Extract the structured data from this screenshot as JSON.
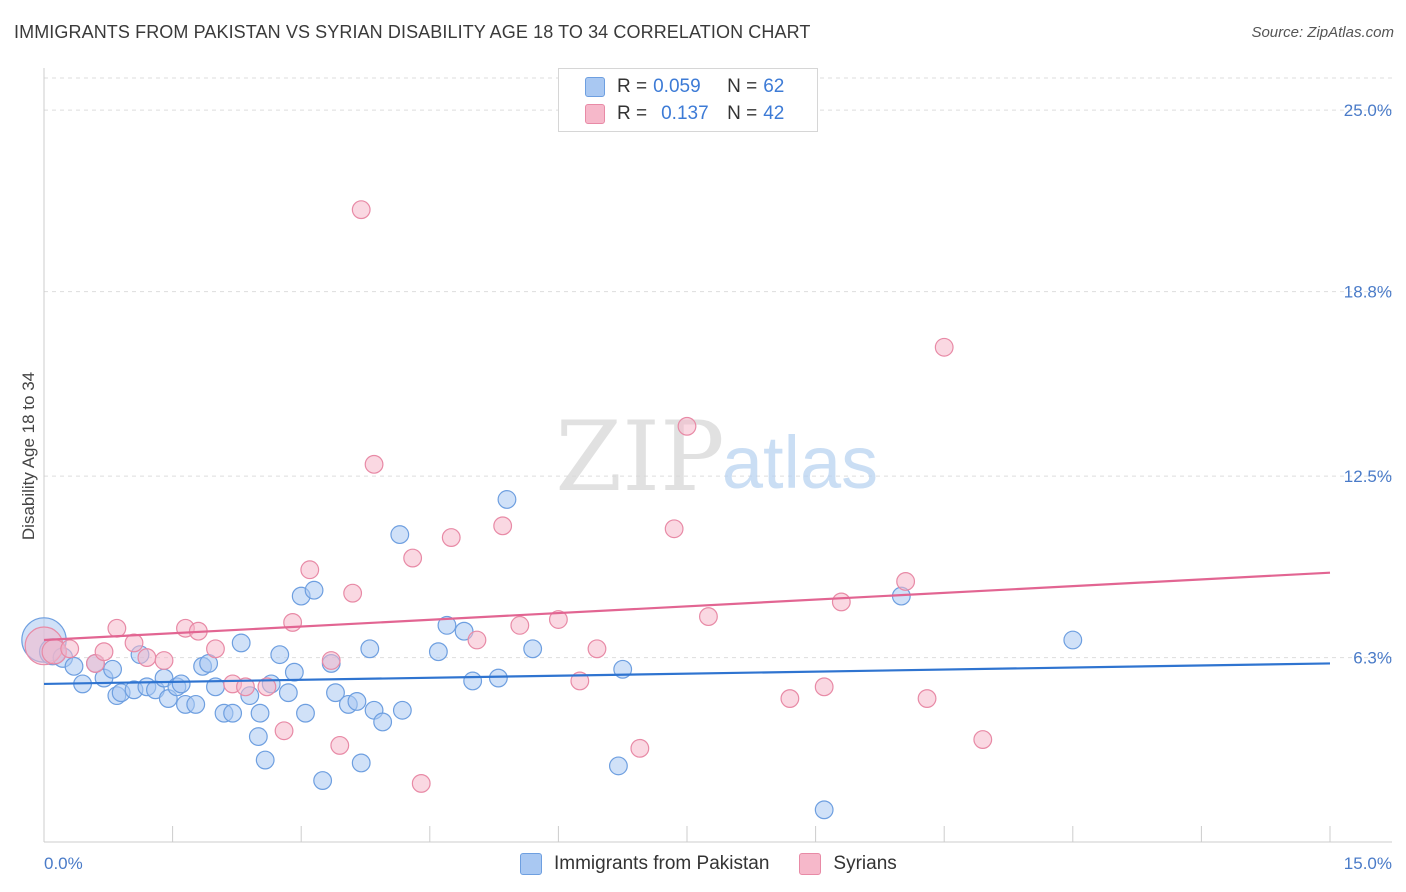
{
  "header": {
    "title": "IMMIGRANTS FROM PAKISTAN VS SYRIAN DISABILITY AGE 18 TO 34 CORRELATION CHART",
    "source": "Source: ZipAtlas.com"
  },
  "watermark": {
    "zip": "ZIP",
    "atlas": "atlas"
  },
  "legend": {
    "rows": [
      {
        "r_label": "R =",
        "r_value": "0.059",
        "n_label": "N =",
        "n_value": "62",
        "color": "#a9c8f2"
      },
      {
        "r_label": "R =",
        "r_value": "0.137",
        "n_label": "N =",
        "n_value": "42",
        "color": "#f6b8ca"
      }
    ]
  },
  "bottom_legend": [
    {
      "label": "Immigrants from Pakistan",
      "color": "#a9c8f2"
    },
    {
      "label": "Syrians",
      "color": "#f6b8ca"
    }
  ],
  "colors": {
    "blue_fill": "#a9c8f2",
    "blue_stroke": "#6e9fe0",
    "blue_line": "#2f74d0",
    "pink_fill": "#f6b8ca",
    "pink_stroke": "#e88aa6",
    "pink_line": "#e26592",
    "grid": "#dddddd",
    "tick": "#4a7bc8"
  },
  "chart_data": {
    "type": "scatter",
    "title": "IMMIGRANTS FROM PAKISTAN VS SYRIAN DISABILITY AGE 18 TO 34 CORRELATION CHART",
    "xlabel": "",
    "ylabel": "Disability Age 18 to 34",
    "xlim": [
      0,
      15
    ],
    "ylim": [
      0,
      26.2
    ],
    "x_tick_labels": [
      "0.0%",
      "15.0%"
    ],
    "y_ticks": [
      6.3,
      12.5,
      18.8,
      25.0
    ],
    "y_tick_labels": [
      "6.3%",
      "12.5%",
      "18.8%",
      "25.0%"
    ],
    "legend_position": "top-center",
    "series": [
      {
        "name": "Immigrants from Pakistan",
        "trend": [
          [
            0,
            5.4
          ],
          [
            15,
            6.1
          ]
        ],
        "points": [
          [
            0.0,
            6.9,
            26
          ],
          [
            0.1,
            6.5,
            15
          ],
          [
            0.22,
            6.3,
            11
          ],
          [
            0.35,
            6.0,
            10
          ],
          [
            0.45,
            5.4,
            10
          ],
          [
            0.6,
            6.1,
            10
          ],
          [
            0.7,
            5.6,
            10
          ],
          [
            0.8,
            5.9,
            10
          ],
          [
            0.85,
            5.0,
            10
          ],
          [
            0.9,
            5.1,
            10
          ],
          [
            1.05,
            5.2,
            10
          ],
          [
            1.12,
            6.4,
            10
          ],
          [
            1.2,
            5.3,
            10
          ],
          [
            1.3,
            5.2,
            10
          ],
          [
            1.4,
            5.6,
            10
          ],
          [
            1.45,
            4.9,
            10
          ],
          [
            1.55,
            5.3,
            10
          ],
          [
            1.6,
            5.4,
            10
          ],
          [
            1.65,
            4.7,
            10
          ],
          [
            1.77,
            4.7,
            10
          ],
          [
            1.85,
            6.0,
            10
          ],
          [
            1.92,
            6.1,
            10
          ],
          [
            2.0,
            5.3,
            10
          ],
          [
            2.1,
            4.4,
            10
          ],
          [
            2.2,
            4.4,
            10
          ],
          [
            2.3,
            6.8,
            10
          ],
          [
            2.4,
            5.0,
            10
          ],
          [
            2.5,
            3.6,
            10
          ],
          [
            2.52,
            4.4,
            10
          ],
          [
            2.58,
            2.8,
            10
          ],
          [
            2.65,
            5.4,
            10
          ],
          [
            2.75,
            6.4,
            10
          ],
          [
            2.85,
            5.1,
            10
          ],
          [
            2.92,
            5.8,
            10
          ],
          [
            3.0,
            8.4,
            10
          ],
          [
            3.05,
            4.4,
            10
          ],
          [
            3.15,
            8.6,
            10
          ],
          [
            3.25,
            2.1,
            10
          ],
          [
            3.35,
            6.1,
            10
          ],
          [
            3.4,
            5.1,
            10
          ],
          [
            3.55,
            4.7,
            10
          ],
          [
            3.65,
            4.8,
            10
          ],
          [
            3.7,
            2.7,
            10
          ],
          [
            3.8,
            6.6,
            10
          ],
          [
            3.85,
            4.5,
            10
          ],
          [
            3.95,
            4.1,
            10
          ],
          [
            4.15,
            10.5,
            10
          ],
          [
            4.18,
            4.5,
            10
          ],
          [
            4.6,
            6.5,
            10
          ],
          [
            4.7,
            7.4,
            10
          ],
          [
            4.9,
            7.2,
            10
          ],
          [
            5.0,
            5.5,
            10
          ],
          [
            5.3,
            5.6,
            10
          ],
          [
            5.4,
            11.7,
            10
          ],
          [
            5.7,
            6.6,
            10
          ],
          [
            6.7,
            2.6,
            10
          ],
          [
            6.75,
            5.9,
            10
          ],
          [
            9.1,
            1.1,
            10
          ],
          [
            10.0,
            8.4,
            10
          ],
          [
            12.0,
            6.9,
            10
          ]
        ]
      },
      {
        "name": "Syrians",
        "trend": [
          [
            0,
            6.9
          ],
          [
            15,
            9.2
          ]
        ],
        "points": [
          [
            0.0,
            6.7,
            22
          ],
          [
            0.12,
            6.5,
            14
          ],
          [
            0.3,
            6.6,
            10
          ],
          [
            0.6,
            6.1,
            10
          ],
          [
            0.7,
            6.5,
            10
          ],
          [
            0.85,
            7.3,
            10
          ],
          [
            1.05,
            6.8,
            10
          ],
          [
            1.2,
            6.3,
            10
          ],
          [
            1.4,
            6.2,
            10
          ],
          [
            1.65,
            7.3,
            10
          ],
          [
            1.8,
            7.2,
            10
          ],
          [
            2.0,
            6.6,
            10
          ],
          [
            2.2,
            5.4,
            10
          ],
          [
            2.35,
            5.3,
            10
          ],
          [
            2.6,
            5.3,
            10
          ],
          [
            2.8,
            3.8,
            10
          ],
          [
            2.9,
            7.5,
            10
          ],
          [
            3.1,
            9.3,
            10
          ],
          [
            3.35,
            6.2,
            10
          ],
          [
            3.45,
            3.3,
            10
          ],
          [
            3.6,
            8.5,
            10
          ],
          [
            3.7,
            21.6,
            10
          ],
          [
            3.85,
            12.9,
            10
          ],
          [
            4.3,
            9.7,
            10
          ],
          [
            4.4,
            2.0,
            10
          ],
          [
            4.75,
            10.4,
            10
          ],
          [
            5.05,
            6.9,
            10
          ],
          [
            5.35,
            10.8,
            10
          ],
          [
            5.55,
            7.4,
            10
          ],
          [
            6.0,
            7.6,
            10
          ],
          [
            6.25,
            5.5,
            10
          ],
          [
            6.45,
            6.6,
            10
          ],
          [
            6.95,
            3.2,
            10
          ],
          [
            7.35,
            10.7,
            10
          ],
          [
            7.5,
            14.2,
            10
          ],
          [
            7.75,
            7.7,
            10
          ],
          [
            8.7,
            4.9,
            10
          ],
          [
            9.1,
            5.3,
            10
          ],
          [
            9.3,
            8.2,
            10
          ],
          [
            10.05,
            8.9,
            10
          ],
          [
            10.3,
            4.9,
            10
          ],
          [
            10.5,
            16.9,
            10
          ],
          [
            10.95,
            3.5,
            10
          ]
        ]
      }
    ]
  }
}
